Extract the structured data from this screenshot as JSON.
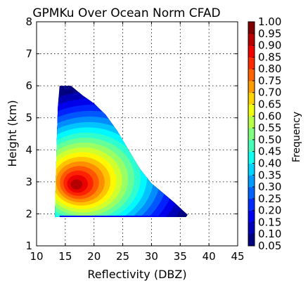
{
  "chart_data": {
    "type": "heatmap",
    "title": "GPMKu Over Ocean Norm CFAD",
    "xlabel": "Reflectivity (DBZ)",
    "ylabel": "Height (km)",
    "xlim": [
      10,
      45
    ],
    "ylim": [
      1,
      8
    ],
    "x_ticks": [
      10,
      15,
      20,
      25,
      30,
      35,
      40,
      45
    ],
    "y_ticks": [
      1,
      2,
      3,
      4,
      5,
      6,
      7,
      8
    ],
    "grid": true,
    "colorbar": {
      "label": "Frequency",
      "levels": [
        0.05,
        0.1,
        0.15,
        0.2,
        0.25,
        0.3,
        0.35,
        0.4,
        0.45,
        0.5,
        0.55,
        0.6,
        0.65,
        0.7,
        0.75,
        0.8,
        0.85,
        0.9,
        0.95,
        1.0
      ],
      "tick_labels": [
        "0.05",
        "0.10",
        "0.15",
        "0.20",
        "0.25",
        "0.30",
        "0.35",
        "0.40",
        "0.45",
        "0.50",
        "0.55",
        "0.60",
        "0.65",
        "0.70",
        "0.75",
        "0.80",
        "0.85",
        "0.90",
        "0.95",
        "1.00"
      ],
      "colormap": "jet"
    },
    "field": {
      "peak": {
        "x": 16.8,
        "y": 2.9,
        "value": 1.0
      },
      "outline": [
        [
          13.2,
          1.9
        ],
        [
          13.4,
          3.5
        ],
        [
          13.7,
          5.3
        ],
        [
          14.0,
          6.0
        ],
        [
          16.0,
          6.0
        ],
        [
          18.0,
          5.7
        ],
        [
          20.0,
          5.45
        ],
        [
          22.0,
          5.1
        ],
        [
          24.0,
          4.6
        ],
        [
          26.0,
          4.0
        ],
        [
          28.0,
          3.4
        ],
        [
          30.0,
          2.95
        ],
        [
          32.0,
          2.65
        ],
        [
          34.0,
          2.35
        ],
        [
          35.5,
          2.1
        ],
        [
          36.3,
          1.97
        ],
        [
          36.0,
          1.9
        ],
        [
          13.2,
          1.9
        ]
      ]
    }
  }
}
